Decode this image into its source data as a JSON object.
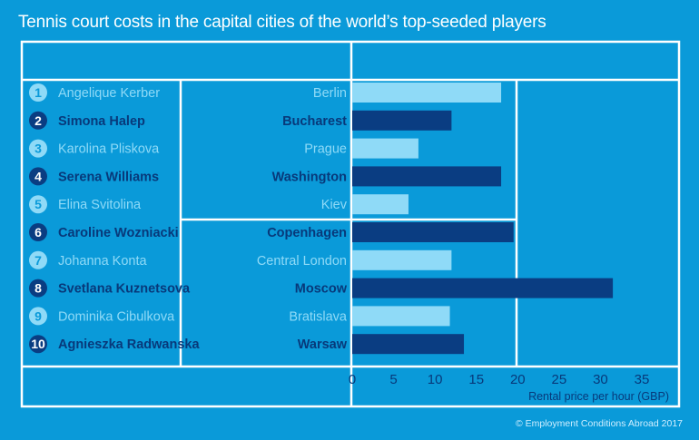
{
  "title": "Tennis court costs in the capital cities of the world’s top-seeded players",
  "source": "© Employment Conditions Abroad 2017",
  "colors": {
    "background": "#0a9ad9",
    "court_lines": "#ffffff",
    "bar_light": "#8fdaf7",
    "bar_dark": "#0a3d82",
    "text_light": "#8fdaf7",
    "text_dark": "#08397a"
  },
  "chart_data": {
    "type": "bar",
    "orientation": "horizontal",
    "ranks": [
      "1",
      "2",
      "3",
      "4",
      "5",
      "6",
      "7",
      "8",
      "9",
      "10"
    ],
    "players": [
      "Angelique Kerber",
      "Simona Halep",
      "Karolina Pliskova",
      "Serena Williams",
      "Elina Svitolina",
      "Caroline Wozniacki",
      "Johanna Konta",
      "Svetlana Kuznetsova",
      "Dominika Cibulkova",
      "Agnieszka Radwanska"
    ],
    "categories": [
      "Berlin",
      "Bucharest",
      "Prague",
      "Washington",
      "Kiev",
      "Copenhagen",
      "Central London",
      "Moscow",
      "Bratislava",
      "Warsaw"
    ],
    "values": [
      18,
      12,
      8,
      18,
      6.8,
      19.5,
      12,
      31.5,
      11.8,
      13.5
    ],
    "xlabel": "Rental price per hour (GBP)",
    "xlim": [
      0,
      35
    ],
    "xticks": [
      "0",
      "5",
      "10",
      "15",
      "20",
      "25",
      "30",
      "35"
    ],
    "grid": false,
    "legend": "none"
  }
}
